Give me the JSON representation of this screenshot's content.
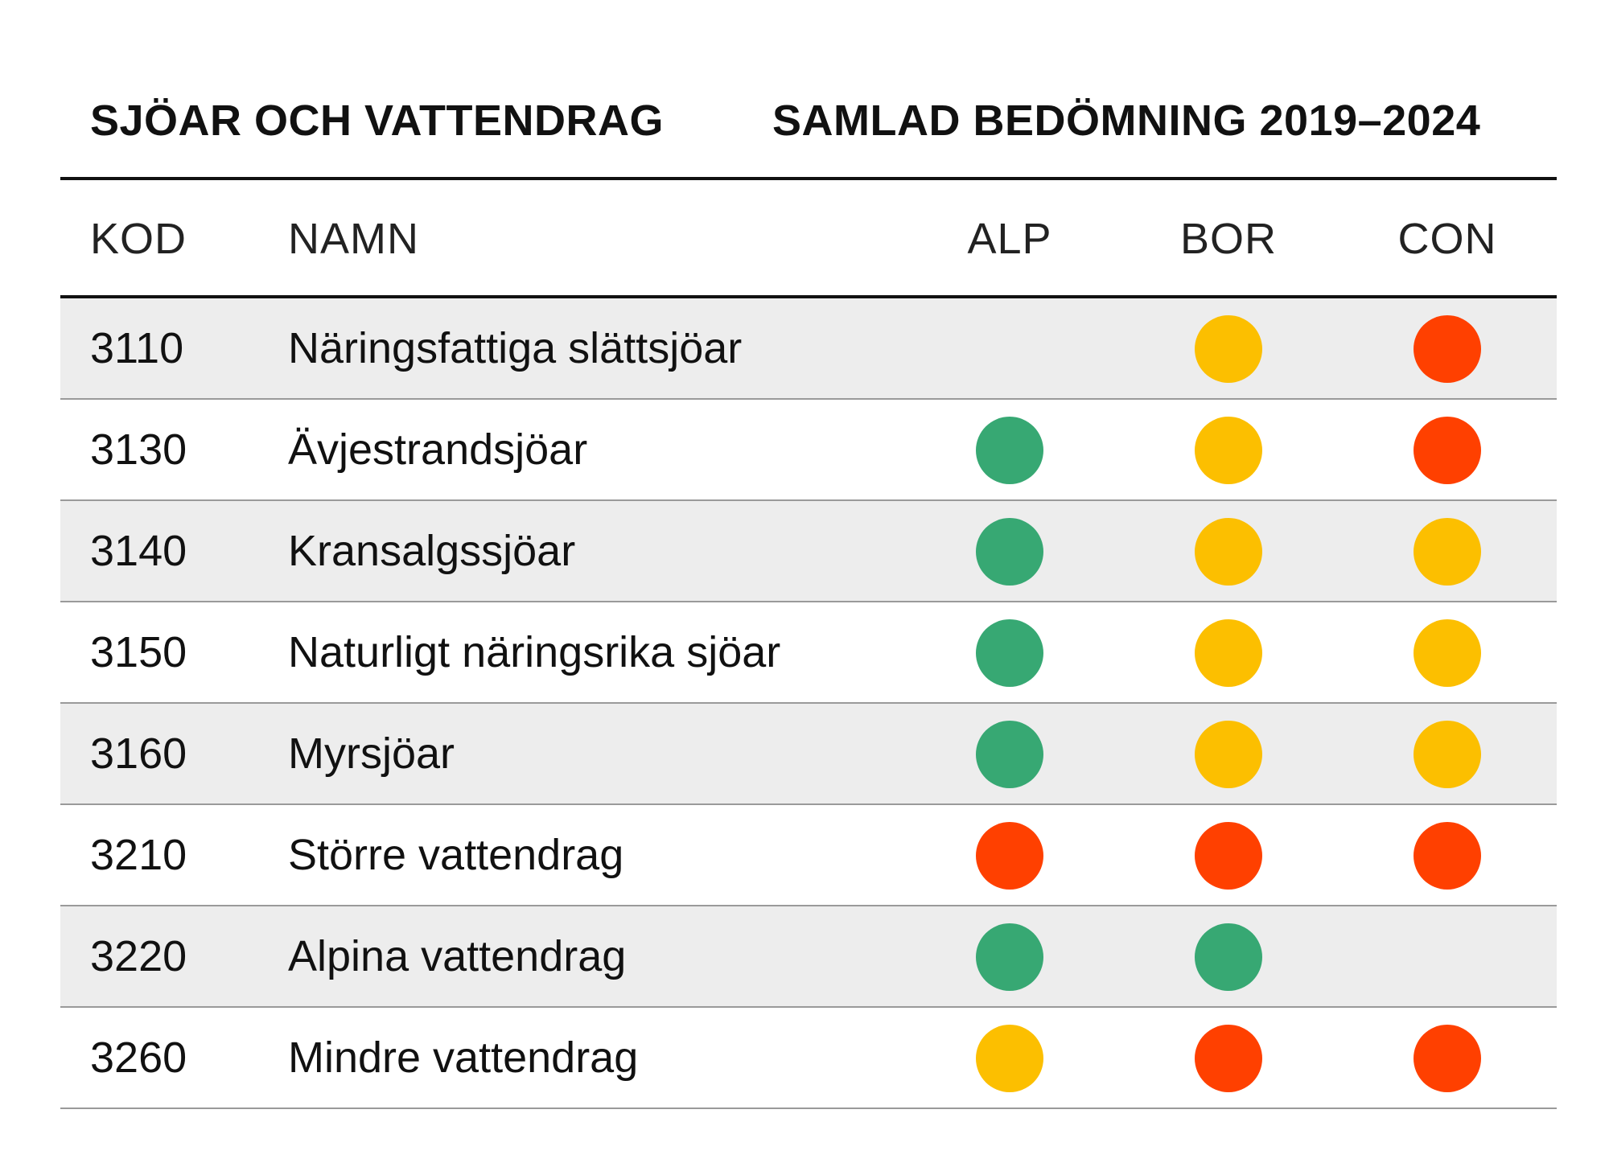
{
  "header": {
    "left_title": "SJÖAR OCH VATTENDRAG",
    "right_title": "SAMLAD BEDÖMNING 2019–2024"
  },
  "columns": {
    "code": "KOD",
    "name": "NAMN",
    "alp": "ALP",
    "bor": "BOR",
    "con": "CON"
  },
  "status_colors": {
    "green": "#37a873",
    "yellow": "#fcbf00",
    "red": "#ff4000"
  },
  "rows": [
    {
      "code": "3110",
      "name": "Näringsfattiga slättsjöar",
      "alp": null,
      "bor": "yellow",
      "con": "red"
    },
    {
      "code": "3130",
      "name": "Ävjestrandsjöar",
      "alp": "green",
      "bor": "yellow",
      "con": "red"
    },
    {
      "code": "3140",
      "name": "Kransalgssjöar",
      "alp": "green",
      "bor": "yellow",
      "con": "yellow"
    },
    {
      "code": "3150",
      "name": "Naturligt näringsrika sjöar",
      "alp": "green",
      "bor": "yellow",
      "con": "yellow"
    },
    {
      "code": "3160",
      "name": "Myrsjöar",
      "alp": "green",
      "bor": "yellow",
      "con": "yellow"
    },
    {
      "code": "3210",
      "name": "Större vattendrag",
      "alp": "red",
      "bor": "red",
      "con": "red"
    },
    {
      "code": "3220",
      "name": "Alpina vattendrag",
      "alp": "green",
      "bor": "green",
      "con": null
    },
    {
      "code": "3260",
      "name": "Mindre vattendrag",
      "alp": "yellow",
      "bor": "red",
      "con": "red"
    }
  ]
}
